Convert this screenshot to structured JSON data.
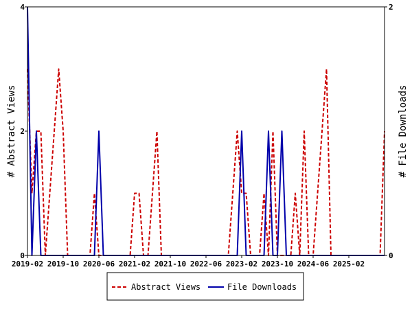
{
  "chart_data": {
    "type": "line",
    "x_ticks": [
      "2019-02",
      "2019-10",
      "2020-06",
      "2021-02",
      "2021-10",
      "2022-06",
      "2023-02",
      "2023-10",
      "2024-06",
      "2025-02"
    ],
    "y_left": {
      "label": "# Abstract Views",
      "ylim": [
        0,
        4
      ],
      "ticks": [
        "0",
        "2",
        "4"
      ]
    },
    "y_right": {
      "label": "# File Downloads",
      "ylim": [
        0,
        2
      ],
      "ticks": [
        "0",
        "2"
      ]
    },
    "x_range": [
      "2019-02",
      "2025-10"
    ],
    "grid": false,
    "legend_position": "bottom",
    "series": [
      {
        "name": "Abstract Views",
        "axis": "left",
        "color": "#cc0000",
        "style": "dashed",
        "x": [
          "2019-02",
          "2019-03",
          "2019-04",
          "2019-05",
          "2019-06",
          "2019-07",
          "2019-08",
          "2019-09",
          "2019-10",
          "2019-11",
          "2019-12",
          "2020-01",
          "2020-02",
          "2020-03",
          "2020-04",
          "2020-05",
          "2020-06",
          "2020-07",
          "2020-08",
          "2020-09",
          "2020-10",
          "2020-11",
          "2020-12",
          "2021-01",
          "2021-02",
          "2021-03",
          "2021-04",
          "2021-05",
          "2021-06",
          "2021-07",
          "2021-08",
          "2021-09",
          "2021-10",
          "2021-11",
          "2021-12",
          "2022-01",
          "2022-02",
          "2022-03",
          "2022-04",
          "2022-05",
          "2022-06",
          "2022-07",
          "2022-08",
          "2022-09",
          "2022-10",
          "2022-11",
          "2022-12",
          "2023-01",
          "2023-02",
          "2023-03",
          "2023-04",
          "2023-05",
          "2023-06",
          "2023-07",
          "2023-08",
          "2023-09",
          "2023-10",
          "2023-11",
          "2023-12",
          "2024-01",
          "2024-02",
          "2024-03",
          "2024-04",
          "2024-05",
          "2024-06",
          "2024-07",
          "2024-08",
          "2024-09",
          "2024-10",
          "2024-11",
          "2024-12",
          "2025-01",
          "2025-02",
          "2025-03",
          "2025-04",
          "2025-05",
          "2025-06",
          "2025-07",
          "2025-08",
          "2025-09",
          "2025-10"
        ],
        "values": [
          3,
          1,
          2,
          2,
          0,
          1,
          2,
          3,
          2,
          0,
          0,
          0,
          0,
          0,
          0,
          1,
          0,
          0,
          0,
          0,
          0,
          0,
          0,
          0,
          1,
          1,
          0,
          0,
          1,
          2,
          0,
          0,
          0,
          0,
          0,
          0,
          0,
          0,
          0,
          0,
          0,
          0,
          0,
          0,
          0,
          0,
          1,
          2,
          1,
          1,
          0,
          0,
          0,
          1,
          0,
          2,
          0,
          0,
          0,
          0,
          1,
          0,
          2,
          0,
          0,
          1,
          2,
          3,
          0,
          0,
          0,
          0,
          0,
          0,
          0,
          0,
          0,
          0,
          0,
          0,
          2
        ]
      },
      {
        "name": "File Downloads",
        "axis": "right",
        "color": "#0000aa",
        "style": "solid",
        "x": [
          "2019-02",
          "2019-03",
          "2019-04",
          "2019-05",
          "2019-06",
          "2019-07",
          "2019-08",
          "2019-09",
          "2019-10",
          "2019-11",
          "2019-12",
          "2020-01",
          "2020-02",
          "2020-03",
          "2020-04",
          "2020-05",
          "2020-06",
          "2020-07",
          "2020-08",
          "2020-09",
          "2020-10",
          "2020-11",
          "2020-12",
          "2021-01",
          "2021-02",
          "2021-03",
          "2021-04",
          "2021-05",
          "2021-06",
          "2021-07",
          "2021-08",
          "2021-09",
          "2021-10",
          "2021-11",
          "2021-12",
          "2022-01",
          "2022-02",
          "2022-03",
          "2022-04",
          "2022-05",
          "2022-06",
          "2022-07",
          "2022-08",
          "2022-09",
          "2022-10",
          "2022-11",
          "2022-12",
          "2023-01",
          "2023-02",
          "2023-03",
          "2023-04",
          "2023-05",
          "2023-06",
          "2023-07",
          "2023-08",
          "2023-09",
          "2023-10",
          "2023-11",
          "2023-12",
          "2024-01",
          "2024-02",
          "2024-03",
          "2024-04",
          "2024-05",
          "2024-06",
          "2024-07",
          "2024-08",
          "2024-09",
          "2024-10",
          "2024-11",
          "2024-12",
          "2025-01",
          "2025-02",
          "2025-03",
          "2025-04",
          "2025-05",
          "2025-06",
          "2025-07",
          "2025-08",
          "2025-09",
          "2025-10"
        ],
        "values": [
          2,
          0,
          1,
          0,
          0,
          0,
          0,
          0,
          0,
          0,
          0,
          0,
          0,
          0,
          0,
          0,
          1,
          0,
          0,
          0,
          0,
          0,
          0,
          0,
          0,
          0,
          0,
          0,
          0,
          0,
          0,
          0,
          0,
          0,
          0,
          0,
          0,
          0,
          0,
          0,
          0,
          0,
          0,
          0,
          0,
          0,
          0,
          0,
          1,
          0,
          0,
          0,
          0,
          0,
          1,
          0,
          0,
          1,
          0,
          0,
          0,
          0,
          0,
          0,
          0,
          0,
          0,
          0,
          0,
          0,
          0,
          0,
          0,
          0,
          0,
          0,
          0,
          0,
          0,
          0,
          0
        ]
      }
    ]
  }
}
